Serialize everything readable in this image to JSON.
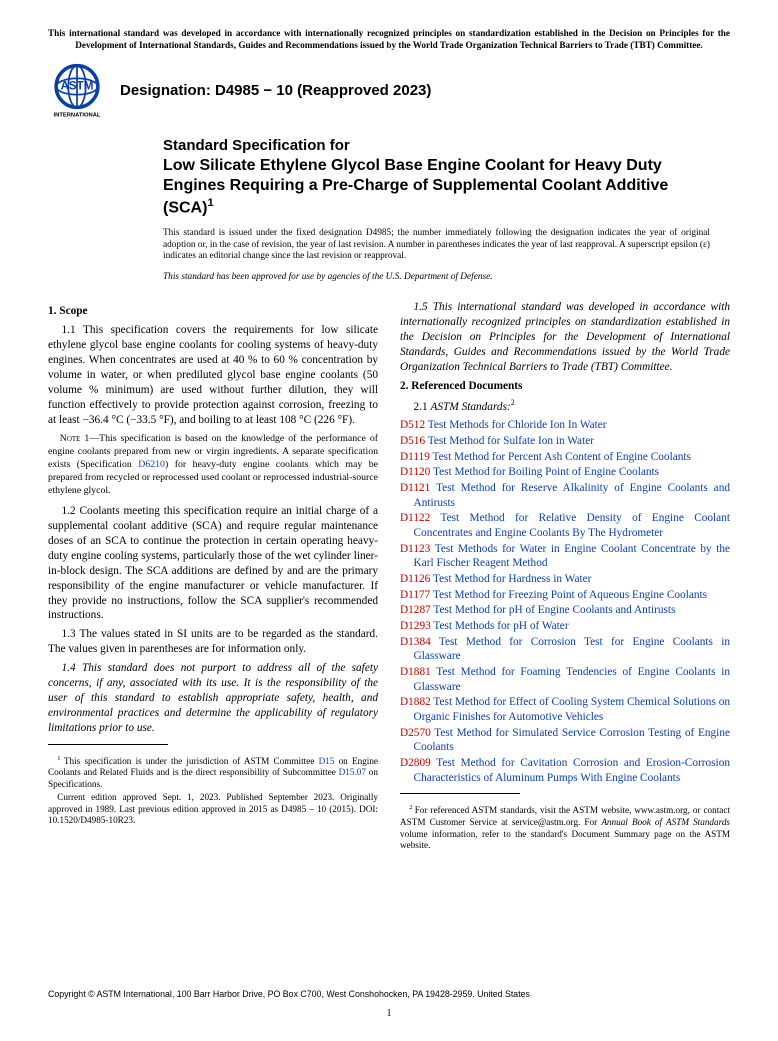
{
  "top_disclaimer": "This international standard was developed in accordance with internationally recognized principles on standardization established in the Decision on Principles for the Development of International Standards, Guides and Recommendations issued by the World Trade Organization Technical Barriers to Trade (TBT) Committee.",
  "logo_text_top": "ASTM",
  "logo_text_bottom": "INTERNATIONAL",
  "designation": "Designation: D4985 − 10 (Reapproved 2023)",
  "title_lead": "Standard Specification for",
  "title_main": "Low Silicate Ethylene Glycol Base Engine Coolant for Heavy Duty Engines Requiring a Pre-Charge of Supplemental Coolant Additive (SCA)",
  "title_sup": "1",
  "issuance": "This standard is issued under the fixed designation D4985; the number immediately following the designation indicates the year of original adoption or, in the case of revision, the year of last revision. A number in parentheses indicates the year of last reapproval. A superscript epsilon (ε) indicates an editorial change since the last revision or reapproval.",
  "approved_line": "This standard has been approved for use by agencies of the U.S. Department of Defense.",
  "scope_head": "1. Scope",
  "p11": "1.1 This specification covers the requirements for low silicate ethylene glycol base engine coolants for cooling systems of heavy-duty engines. When concentrates are used at 40 % to 60 % concentration by volume in water, or when prediluted glycol base engine coolants (50 volume % minimum) are used without further dilution, they will function effectively to provide protection against corrosion, freezing to at least −36.4 °C (−33.5 °F), and boiling to at least 108 °C (226 °F).",
  "note1_label": "Note 1—",
  "note1_a": "This specification is based on the knowledge of the performance of engine coolants prepared from new or virgin ingredients. A separate specification exists (Specification ",
  "note1_code": "D6210",
  "note1_b": ") for heavy-duty engine coolants which may be prepared from recycled or reprocessed used coolant or reprocessed industrial-source ethylene glycol.",
  "p12": "1.2 Coolants meeting this specification require an initial charge of a supplemental coolant additive (SCA) and require regular maintenance doses of an SCA to continue the protection in certain operating heavy-duty engine cooling systems, particularly those of the wet cylinder liner-in-block design. The SCA additions are defined by and are the primary responsibility of the engine manufacturer or vehicle manufacturer. If they provide no instructions, follow the SCA supplier's recommended instructions.",
  "p13": "1.3 The values stated in SI units are to be regarded as the standard. The values given in parentheses are for information only.",
  "p14": "1.4 This standard does not purport to address all of the safety concerns, if any, associated with its use. It is the responsibility of the user of this standard to establish appropriate safety, health, and environmental practices and determine the applicability of regulatory limitations prior to use.",
  "p15": "1.5 This international standard was developed in accordance with internationally recognized principles on standardization established in the Decision on Principles for the Development of International Standards, Guides and Recommendations issued by the World Trade Organization Technical Barriers to Trade (TBT) Committee.",
  "refdoc_head": "2. Referenced Documents",
  "refsub_a": "2.1 ",
  "refsub_b": "ASTM Standards:",
  "refsub_sup": "2",
  "refs": [
    {
      "code": "D512",
      "title": "Test Methods for Chloride Ion In Water"
    },
    {
      "code": "D516",
      "title": "Test Method for Sulfate Ion in Water"
    },
    {
      "code": "D1119",
      "title": "Test Method for Percent Ash Content of Engine Coolants"
    },
    {
      "code": "D1120",
      "title": "Test Method for Boiling Point of Engine Coolants"
    },
    {
      "code": "D1121",
      "title": "Test Method for Reserve Alkalinity of Engine Coolants and Antirusts"
    },
    {
      "code": "D1122",
      "title": "Test Method for Relative Density of Engine Coolant Concentrates and Engine Coolants By The Hydrometer"
    },
    {
      "code": "D1123",
      "title": "Test Methods for Water in Engine Coolant Concentrate by the Karl Fischer Reagent Method"
    },
    {
      "code": "D1126",
      "title": "Test Method for Hardness in Water"
    },
    {
      "code": "D1177",
      "title": "Test Method for Freezing Point of Aqueous Engine Coolants"
    },
    {
      "code": "D1287",
      "title": "Test Method for pH of Engine Coolants and Antirusts"
    },
    {
      "code": "D1293",
      "title": "Test Methods for pH of Water"
    },
    {
      "code": "D1384",
      "title": "Test Method for Corrosion Test for Engine Coolants in Glassware"
    },
    {
      "code": "D1881",
      "title": "Test Method for Foaming Tendencies of Engine Coolants in Glassware"
    },
    {
      "code": "D1882",
      "title": "Test Method for Effect of Cooling System Chemical Solutions on Organic Finishes for Automotive Vehicles"
    },
    {
      "code": "D2570",
      "title": "Test Method for Simulated Service Corrosion Testing of Engine Coolants"
    },
    {
      "code": "D2809",
      "title": "Test Method for Cavitation Corrosion and Erosion-Corrosion Characteristics of Aluminum Pumps With Engine Coolants"
    }
  ],
  "fn1_a": "This specification is under the jurisdiction of ASTM Committee ",
  "fn1_code1": "D15",
  "fn1_b": " on Engine Coolants and Related Fluids and is the direct responsibility of Subcommittee ",
  "fn1_code2": "D15.07",
  "fn1_c": " on Specifications.",
  "fn1_d": "Current edition approved Sept. 1, 2023. Published September 2023. Originally approved in 1989. Last previous edition approved in 2015 as D4985 – 10 (2015). DOI: 10.1520/D4985-10R23.",
  "fn2_a": "For referenced ASTM standards, visit the ASTM website, www.astm.org, or contact ASTM Customer Service at service@astm.org. For ",
  "fn2_b": "Annual Book of ASTM Standards",
  "fn2_c": " volume information, refer to the standard's Document Summary page on the ASTM website.",
  "copyright": "Copyright © ASTM International, 100 Barr Harbor Drive, PO Box C700, West Conshohocken, PA 19428-2959. United States",
  "pagenum": "1"
}
